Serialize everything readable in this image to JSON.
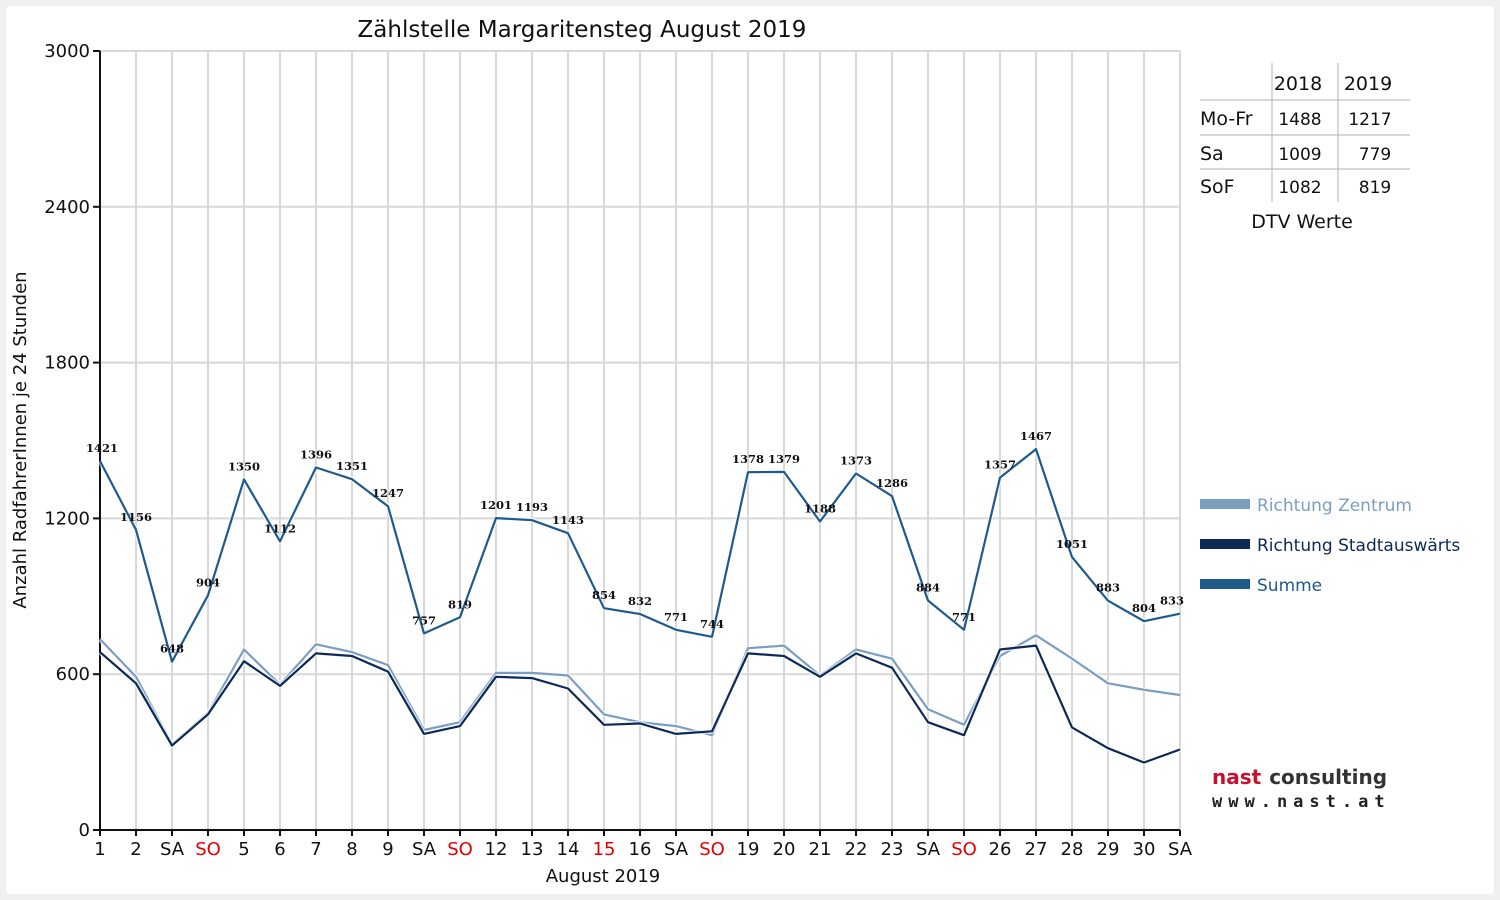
{
  "chart_data": {
    "type": "line",
    "title": "Zählstelle Margaritensteg August 2019",
    "ylabel": "Anzahl RadfahrerInnen je 24 Stunden",
    "xlabel": "August 2019",
    "ylim": [
      0,
      3000
    ],
    "yticks": [
      "0",
      "600",
      "1200",
      "1800",
      "2400",
      "3000"
    ],
    "categories": [
      "1",
      "2",
      "SA",
      "SO",
      "5",
      "6",
      "7",
      "8",
      "9",
      "SA",
      "SO",
      "12",
      "13",
      "14",
      "15",
      "16",
      "SA",
      "SO",
      "19",
      "20",
      "21",
      "22",
      "23",
      "SA",
      "SO",
      "26",
      "27",
      "28",
      "29",
      "30",
      "SA"
    ],
    "red_categories": [
      3,
      10,
      14,
      17,
      24
    ],
    "grid": "vertical",
    "series": [
      {
        "name": "Richtung Zentrum",
        "color": "#7a9ec2",
        "values": [
          735,
          590,
          330,
          450,
          695,
          560,
          715,
          685,
          635,
          385,
          415,
          605,
          605,
          595,
          445,
          415,
          400,
          365,
          700,
          710,
          595,
          695,
          660,
          465,
          405,
          670,
          750,
          660,
          565,
          540,
          520
        ]
      },
      {
        "name": "Richtung Stadtauswärts",
        "color": "#0c2a55",
        "values": [
          685,
          565,
          325,
          445,
          650,
          555,
          680,
          670,
          610,
          370,
          400,
          590,
          585,
          545,
          405,
          410,
          370,
          380,
          680,
          670,
          590,
          680,
          625,
          415,
          365,
          695,
          710,
          395,
          315,
          260,
          310
        ]
      },
      {
        "name": "Summe",
        "color": "#1f5a8c",
        "values": [
          1421,
          1156,
          648,
          904,
          1350,
          1112,
          1396,
          1351,
          1247,
          757,
          819,
          1201,
          1193,
          1143,
          854,
          832,
          771,
          744,
          1378,
          1379,
          1188,
          1373,
          1286,
          884,
          771,
          1357,
          1467,
          1051,
          883,
          804,
          833
        ],
        "labels": [
          "1421",
          "1156",
          "648",
          "904",
          "1350",
          "1112",
          "1396",
          "1351",
          "1247",
          "757",
          "819",
          "1201",
          "1193",
          "1143",
          "854",
          "832",
          "771",
          "744",
          "1378",
          "1379",
          "1188",
          "1373",
          "1286",
          "884",
          "771",
          "1357",
          "1467",
          "1051",
          "883",
          "804",
          "833"
        ]
      }
    ]
  },
  "dtv_table": {
    "caption": "DTV Werte",
    "columns": [
      "2018",
      "2019"
    ],
    "rows": [
      {
        "label": "Mo-Fr",
        "v2018": "1488",
        "v2019": "1217"
      },
      {
        "label": "Sa",
        "v2018": "1009",
        "v2019": "779"
      },
      {
        "label": "SoF",
        "v2018": "1082",
        "v2019": "819"
      }
    ]
  },
  "logo": {
    "name_part1": "nast",
    "name_part2": "consulting",
    "url": "www.nast.at",
    "color_red": "#c8102e",
    "color_dark": "#333333"
  }
}
